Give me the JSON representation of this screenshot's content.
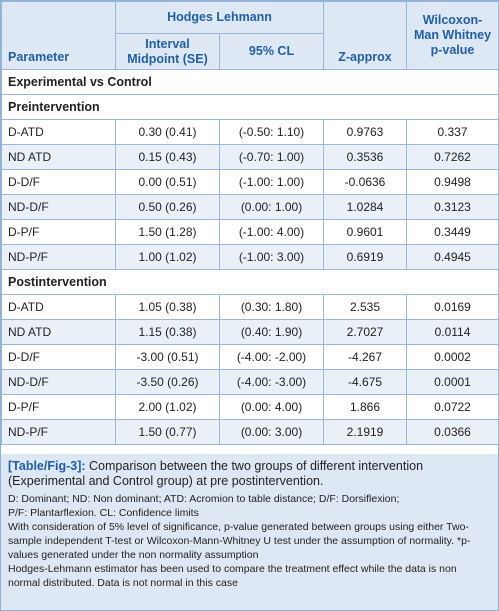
{
  "header": {
    "group_label": "Hodges Lehmann",
    "col_parameter": "Parameter",
    "col_interval": "Interval Midpoint (SE)",
    "col_cl": "95% CL",
    "col_z": "Z-approx",
    "col_p": "Wilcoxon-Man Whitney p-value"
  },
  "comparison_label": "Experimental vs Control",
  "pre": {
    "label": "Preintervention",
    "rows": [
      {
        "param": "D-ATD",
        "mid": "0.30 (0.41)",
        "cl": "(-0.50: 1.10)",
        "z": "0.9763",
        "p": "0.337"
      },
      {
        "param": "ND ATD",
        "mid": "0.15 (0.43)",
        "cl": "(-0.70: 1.00)",
        "z": "0.3536",
        "p": "0.7262"
      },
      {
        "param": "D-D/F",
        "mid": "0.00 (0.51)",
        "cl": "(-1.00: 1.00)",
        "z": "-0.0636",
        "p": "0.9498"
      },
      {
        "param": "ND-D/F",
        "mid": "0.50 (0.26)",
        "cl": "(0.00: 1.00)",
        "z": "1.0284",
        "p": "0.3123"
      },
      {
        "param": "D-P/F",
        "mid": "1.50 (1.28)",
        "cl": "(-1.00: 4.00)",
        "z": "0.9601",
        "p": "0.3449"
      },
      {
        "param": "ND-P/F",
        "mid": "1.00 (1.02)",
        "cl": "(-1.00: 3.00)",
        "z": "0.6919",
        "p": "0.4945"
      }
    ]
  },
  "post": {
    "label": "Postintervention",
    "rows": [
      {
        "param": "D-ATD",
        "mid": "1.05 (0.38)",
        "cl": "(0.30: 1.80)",
        "z": "2.535",
        "p": "0.0169"
      },
      {
        "param": "ND ATD",
        "mid": "1.15 (0.38)",
        "cl": "(0.40: 1.90)",
        "z": "2.7027",
        "p": "0.0114"
      },
      {
        "param": "D-D/F",
        "mid": "-3.00 (0.51)",
        "cl": "(-4.00: -2.00)",
        "z": "-4.267",
        "p": "0.0002"
      },
      {
        "param": "ND-D/F",
        "mid": "-3.50 (0.26)",
        "cl": "(-4.00: -3.00)",
        "z": "-4.675",
        "p": "0.0001"
      },
      {
        "param": "D-P/F",
        "mid": "2.00 (1.02)",
        "cl": "(0.00: 4.00)",
        "z": "1.866",
        "p": "0.0722"
      },
      {
        "param": "ND-P/F",
        "mid": "1.50 (0.77)",
        "cl": "(0.00: 3.00)",
        "z": "2.1919",
        "p": "0.0366"
      }
    ]
  },
  "caption": {
    "label": "[Table/Fig-3]:",
    "text": " Comparison between the two groups of different intervention (Experimental and Control group) at pre postintervention.",
    "notes": [
      "D: Dominant; ND: Non dominant; ATD: Acromion to table distance; D/F: Dorsiflexion;",
      "P/F: Plantarflexion. CL: Confidence limits",
      "With consideration of 5% level of significance, p-value generated between groups using either Two-sample independent T-test or Wilcoxon-Mann-Whitney U test under the assumption of normality. *p-values generated under the non normality assumption",
      "Hodges-Lehmann estimator has been used to compare the treatment effect while the data is non normal distributed. Data is not normal in this case"
    ]
  },
  "colors": {
    "header_bg": "#dde8f4",
    "header_text": "#1f5ea7",
    "alt_row_bg": "#e9f0f8",
    "border": "#9ab7da"
  }
}
